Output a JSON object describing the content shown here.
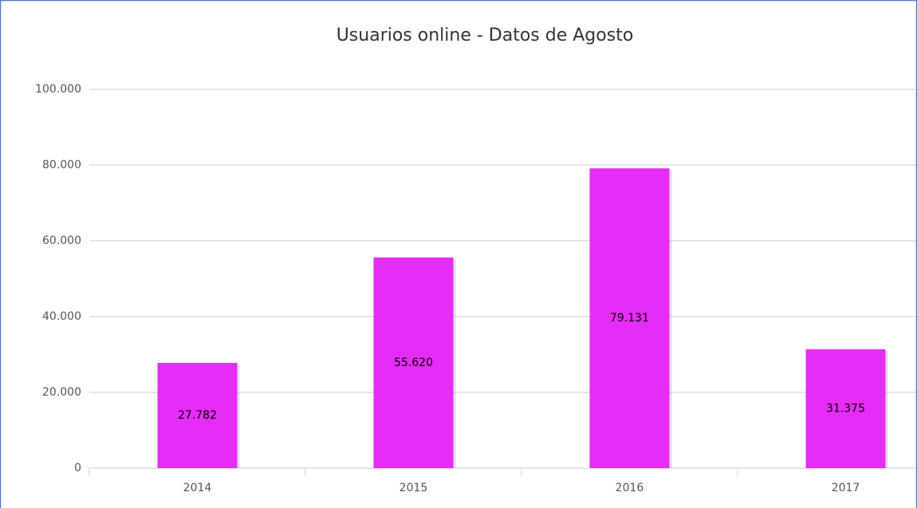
{
  "chart_data": {
    "type": "bar",
    "title": "Usuarios online - Datos de Agosto",
    "categories": [
      "2014",
      "2015",
      "2016",
      "2017"
    ],
    "values": [
      27782,
      55620,
      79131,
      31375
    ],
    "value_labels": [
      "27.782",
      "55.620",
      "79.131",
      "31.375"
    ],
    "color": "#e62cf8",
    "ylim": [
      0,
      100000
    ],
    "yticks": [
      0,
      {
        "value": 20000,
        "label": "20.000"
      },
      {
        "value": 40000,
        "label": "40.000"
      },
      {
        "value": 60000,
        "label": "60.000"
      },
      {
        "value": 80000,
        "label": "80.000"
      },
      {
        "value": 100000,
        "label": "100.000"
      }
    ],
    "grid": true
  }
}
